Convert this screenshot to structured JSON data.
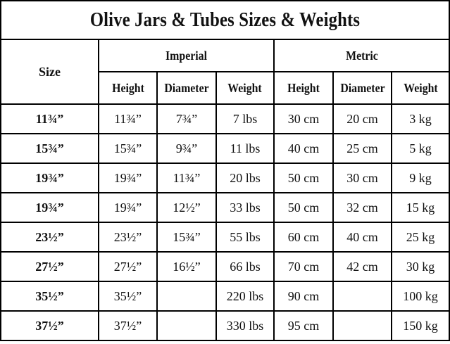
{
  "title": "Olive Jars & Tubes Sizes & Weights",
  "header": {
    "size_label": "Size",
    "groups": [
      {
        "label": "Imperial",
        "columns": [
          "Height",
          "Diameter",
          "Weight"
        ]
      },
      {
        "label": "Metric",
        "columns": [
          "Height",
          "Diameter",
          "Weight"
        ]
      }
    ]
  },
  "rows": [
    {
      "size": "11¾”",
      "imp_height": "11¾”",
      "imp_diameter": "7¾”",
      "imp_weight": "7 lbs",
      "met_height": "30 cm",
      "met_diameter": "20 cm",
      "met_weight": "3 kg"
    },
    {
      "size": "15¾”",
      "imp_height": "15¾”",
      "imp_diameter": "9¾”",
      "imp_weight": "11 lbs",
      "met_height": "40 cm",
      "met_diameter": "25 cm",
      "met_weight": "5 kg"
    },
    {
      "size": "19¾”",
      "imp_height": "19¾”",
      "imp_diameter": "11¾”",
      "imp_weight": "20 lbs",
      "met_height": "50 cm",
      "met_diameter": "30 cm",
      "met_weight": "9 kg"
    },
    {
      "size": "19¾”",
      "imp_height": "19¾”",
      "imp_diameter": "12½”",
      "imp_weight": "33 lbs",
      "met_height": "50 cm",
      "met_diameter": "32 cm",
      "met_weight": "15 kg"
    },
    {
      "size": "23½”",
      "imp_height": "23½”",
      "imp_diameter": "15¾”",
      "imp_weight": "55 lbs",
      "met_height": "60 cm",
      "met_diameter": "40 cm",
      "met_weight": "25 kg"
    },
    {
      "size": "27½”",
      "imp_height": "27½”",
      "imp_diameter": "16½”",
      "imp_weight": "66 lbs",
      "met_height": "70 cm",
      "met_diameter": "42 cm",
      "met_weight": "30 kg"
    },
    {
      "size": "35½”",
      "imp_height": "35½”",
      "imp_diameter": "",
      "imp_weight": "220 lbs",
      "met_height": "90 cm",
      "met_diameter": "",
      "met_weight": "100 kg"
    },
    {
      "size": "37½”",
      "imp_height": "37½”",
      "imp_diameter": "",
      "imp_weight": "330 lbs",
      "met_height": "95 cm",
      "met_diameter": "",
      "met_weight": "150 kg"
    }
  ]
}
